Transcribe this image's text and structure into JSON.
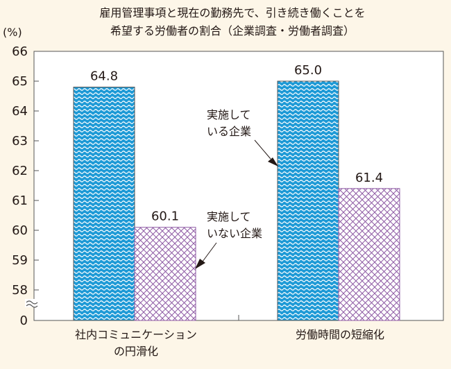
{
  "chart_data": {
    "type": "bar",
    "title_lines": [
      "雇用管理事項と現在の勤務先で、引き続き働くことを",
      "希望する労働者の割合（企業調査・労働者調査）"
    ],
    "ylabel": "(%)",
    "ylim": [
      57,
      66
    ],
    "axis_break": true,
    "axis_floor_label": "0",
    "yticks": [
      58,
      59,
      60,
      61,
      62,
      63,
      64,
      65,
      66
    ],
    "categories": [
      {
        "lines": [
          "社内コミュニケーション",
          "の円滑化"
        ]
      },
      {
        "lines": [
          "労働時間の短縮化"
        ]
      }
    ],
    "series": [
      {
        "name_lines": [
          "実施して",
          "いる企業"
        ],
        "values": [
          64.8,
          65.0
        ],
        "labels": [
          "64.8",
          "65.0"
        ],
        "color": "#1e9ad6",
        "pattern": "wave"
      },
      {
        "name_lines": [
          "実施して",
          "いない企業"
        ],
        "values": [
          60.1,
          61.4
        ],
        "labels": [
          "60.1",
          "61.4"
        ],
        "color": "#8e5aa4",
        "pattern": "crosshatch"
      }
    ],
    "grid": false
  },
  "colors": {
    "text": "#231815",
    "axis": "#555555",
    "background": "#fdf6e8",
    "plot_background": "#ffffff"
  }
}
